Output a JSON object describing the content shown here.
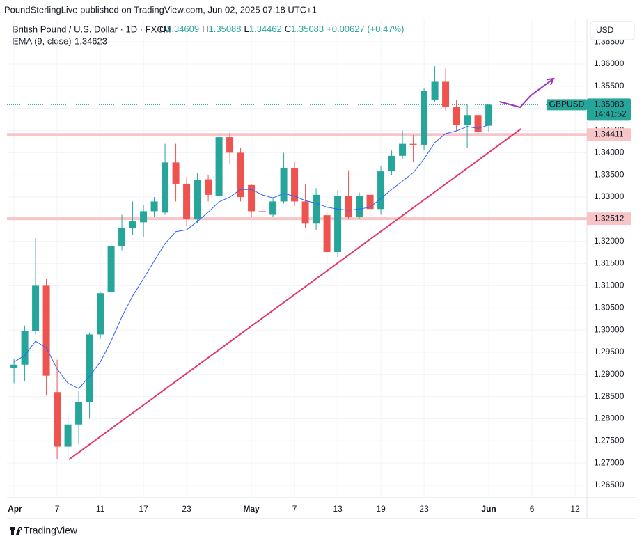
{
  "header": {
    "publisher": "PoundSterlingLive published on TradingView.com, Jun 02, 2025 07:18 UTC+1",
    "symbol": "British Pound / U.S. Dollar · 1D · FXCM",
    "ohlc_labels": [
      "O",
      "H",
      "L",
      "C"
    ],
    "change": "+0.00627 (+0.47%)",
    "indicator": "EMA (9, close)",
    "currency": "USD",
    "footer": "TradingView"
  },
  "chart_data": {
    "type": "candlestick",
    "categories": [
      "Apr",
      null,
      null,
      null,
      "7",
      null,
      null,
      null,
      "11",
      null,
      null,
      null,
      "17",
      null,
      null,
      null,
      "23",
      null,
      null,
      null,
      null,
      null,
      "May",
      null,
      null,
      null,
      "7",
      null,
      null,
      null,
      "13",
      null,
      null,
      null,
      "19",
      null,
      null,
      null,
      "23",
      null,
      null,
      null,
      null,
      null,
      "Jun",
      null,
      null,
      null,
      "6",
      null,
      null,
      null,
      "12",
      null
    ],
    "open": [
      1.2915,
      1.2922,
      1.2997,
      1.31,
      1.286,
      1.2737,
      1.2787,
      1.2837,
      1.299,
      1.3085,
      1.319,
      1.323,
      1.3243,
      1.3268,
      1.3265,
      1.3378,
      1.333,
      1.325,
      1.334,
      1.3303,
      1.3435,
      1.34,
      1.3327,
      1.3268,
      1.326,
      1.329,
      1.3365,
      1.329,
      1.324,
      1.3259,
      1.3176,
      1.3302,
      1.3255,
      1.3305,
      1.3273,
      1.3358,
      1.3393,
      1.342,
      1.3418,
      1.352,
      1.356,
      1.3503,
      1.3462,
      1.3485,
      1.34609,
      null,
      null,
      null,
      null,
      null,
      null,
      null,
      null,
      null
    ],
    "high": [
      1.2935,
      1.301,
      1.3207,
      1.3115,
      1.2933,
      1.2813,
      1.2862,
      1.2994,
      1.3085,
      1.32,
      1.326,
      1.329,
      1.3282,
      1.33,
      1.342,
      1.342,
      1.3345,
      1.3355,
      1.335,
      1.3445,
      1.3445,
      1.341,
      1.333,
      1.3285,
      1.33,
      1.34,
      1.338,
      1.333,
      1.332,
      1.329,
      1.3315,
      1.336,
      1.331,
      1.3325,
      1.337,
      1.3405,
      1.345,
      1.344,
      1.3545,
      1.3595,
      1.359,
      1.352,
      1.351,
      1.351,
      1.35088,
      null,
      null,
      null,
      null,
      null,
      null,
      null,
      null,
      null
    ],
    "low": [
      1.288,
      1.2885,
      1.299,
      1.2852,
      1.2708,
      1.271,
      1.2742,
      1.28,
      1.298,
      1.3075,
      1.318,
      1.3215,
      1.321,
      1.3255,
      1.326,
      1.329,
      1.3235,
      1.324,
      1.329,
      1.329,
      1.3375,
      1.329,
      1.3255,
      1.3255,
      1.3255,
      1.3285,
      1.328,
      1.323,
      1.3225,
      1.314,
      1.3165,
      1.325,
      1.325,
      1.3255,
      1.326,
      1.335,
      1.3385,
      1.338,
      1.3405,
      1.3515,
      1.3495,
      1.345,
      1.341,
      1.344,
      1.34462,
      null,
      null,
      null,
      null,
      null,
      null,
      null,
      null,
      null
    ],
    "close": [
      1.2922,
      1.2997,
      1.31,
      1.2897,
      1.2737,
      1.2787,
      1.2837,
      1.299,
      1.3083,
      1.319,
      1.323,
      1.3245,
      1.3268,
      1.329,
      1.3378,
      1.333,
      1.325,
      1.3338,
      1.3305,
      1.3435,
      1.34,
      1.33,
      1.3268,
      1.3267,
      1.329,
      1.3365,
      1.329,
      1.324,
      1.3305,
      1.3176,
      1.3302,
      1.3255,
      1.3302,
      1.3273,
      1.3358,
      1.3393,
      1.342,
      1.3418,
      1.354,
      1.356,
      1.3503,
      1.3462,
      1.3485,
      1.3446,
      1.35083,
      null,
      null,
      null,
      null,
      null,
      null,
      null,
      null,
      null
    ],
    "up_color": "#26a69a",
    "down_color": "#ef5350",
    "ema": {
      "color": "#2962ff",
      "values": [
        1.2928,
        1.2943,
        1.2975,
        1.296,
        1.2912,
        1.288,
        1.2868,
        1.2896,
        1.2928,
        1.2975,
        1.303,
        1.3077,
        1.3116,
        1.3156,
        1.3195,
        1.3222,
        1.3226,
        1.3245,
        1.3266,
        1.3289,
        1.33,
        1.3317,
        1.3317,
        1.3305,
        1.3298,
        1.3308,
        1.3302,
        1.3292,
        1.3286,
        1.3277,
        1.3273,
        1.327,
        1.3273,
        1.3277,
        1.3297,
        1.3317,
        1.3336,
        1.3355,
        1.3386,
        1.3423,
        1.3443,
        1.3449,
        1.3459,
        1.3455,
        1.34623,
        null,
        null,
        null,
        null,
        null,
        null,
        null,
        null,
        null
      ]
    },
    "levels": [
      {
        "value": 1.34411,
        "color": "#f7c5c8"
      },
      {
        "value": 1.32512,
        "color": "#f7c5c8"
      }
    ],
    "price_label": {
      "symbol": "GBPUSD",
      "countdown": "14:41:52",
      "color": "#26a69a"
    },
    "drawings": [
      {
        "type": "trend_line",
        "color": "#e5356f",
        "points": [
          [
            5.1,
            1.2708
          ],
          [
            47,
            1.3454
          ]
        ]
      },
      {
        "type": "arrow_path",
        "color": "#a12fbf",
        "points": [
          [
            45,
            1.35152
          ],
          [
            46.9,
            1.35026
          ],
          [
            47.9,
            1.35293
          ],
          [
            50,
            1.3567
          ]
        ]
      }
    ],
    "ylim": [
      1.26217,
      1.37005
    ],
    "yticks": [
      {
        "value": 1.265,
        "label": "1.26500"
      },
      {
        "value": 1.27,
        "label": "1.27000"
      },
      {
        "value": 1.275,
        "label": "1.27500"
      },
      {
        "value": 1.28,
        "label": "1.28000"
      },
      {
        "value": 1.285,
        "label": "1.28500"
      },
      {
        "value": 1.29,
        "label": "1.29000"
      },
      {
        "value": 1.295,
        "label": "1.29500"
      },
      {
        "value": 1.3,
        "label": "1.30000"
      },
      {
        "value": 1.305,
        "label": "1.30500"
      },
      {
        "value": 1.31,
        "label": "1.31000"
      },
      {
        "value": 1.315,
        "label": "1.31500"
      },
      {
        "value": 1.32,
        "label": "1.32000"
      },
      {
        "value": 1.325,
        "label": "1.32500"
      },
      {
        "value": 1.33,
        "label": "1.33000"
      },
      {
        "value": 1.335,
        "label": "1.33500"
      },
      {
        "value": 1.34,
        "label": "1.34000"
      },
      {
        "value": 1.345,
        "label": "1.34500"
      },
      {
        "value": 1.35,
        "label": "1.35000"
      },
      {
        "value": 1.355,
        "label": "1.35500"
      },
      {
        "value": 1.36,
        "label": "1.36000"
      },
      {
        "value": 1.365,
        "label": "1.36500"
      }
    ],
    "grid": true
  }
}
